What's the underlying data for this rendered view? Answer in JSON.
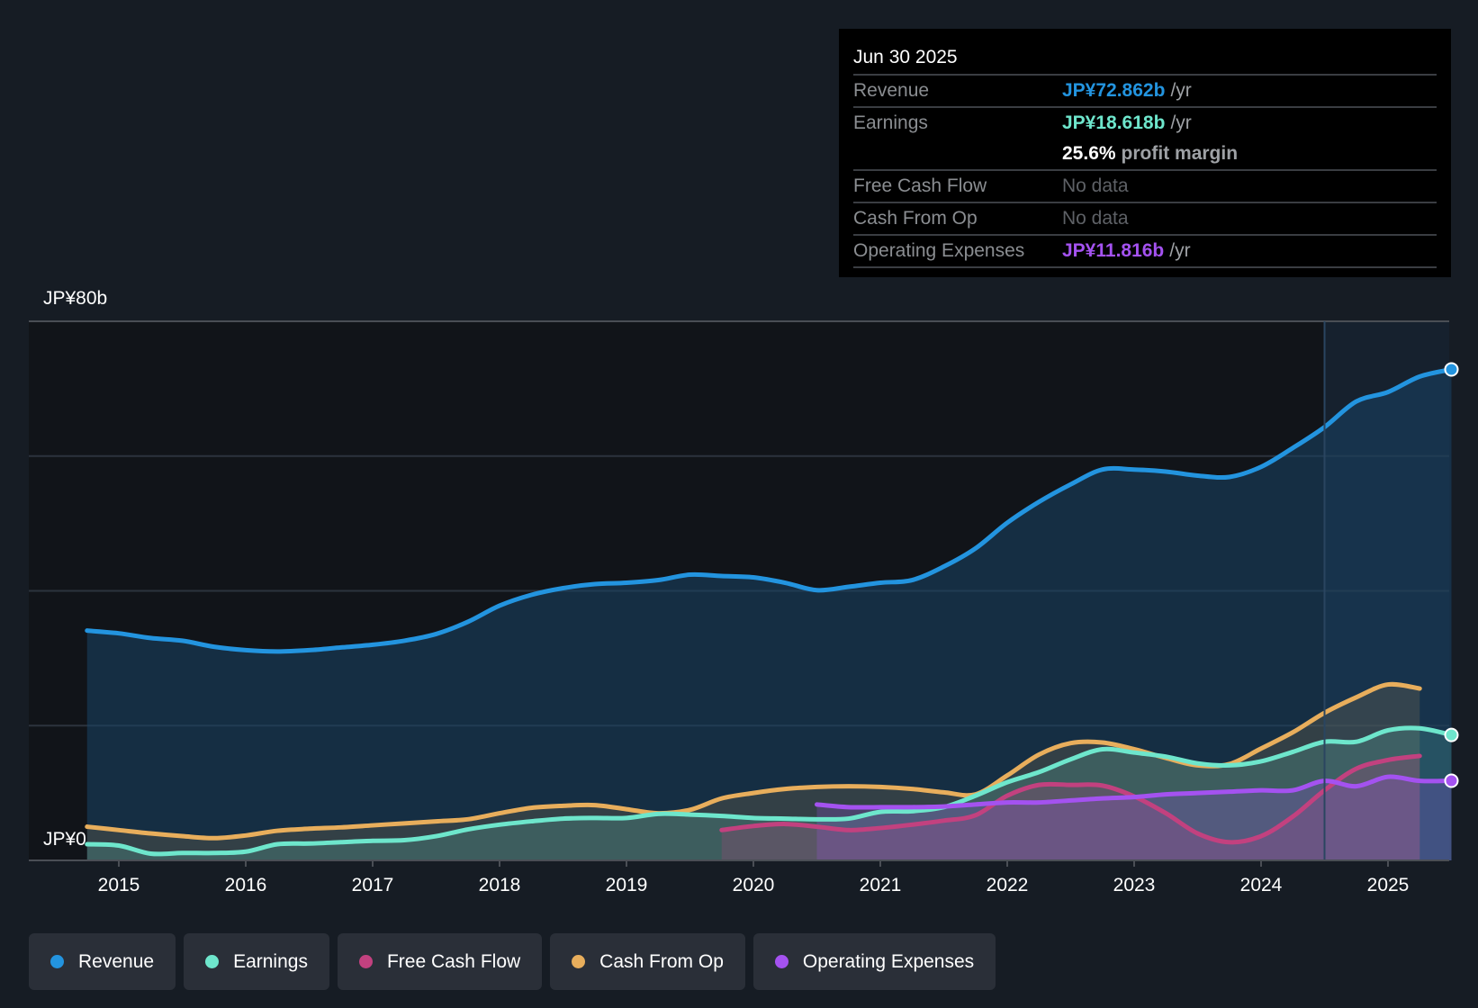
{
  "tooltip": {
    "date": "Jun 30 2025",
    "rows": [
      {
        "label": "Revenue",
        "value": "JP¥72.862b",
        "unit": "/yr",
        "color": "#2394df"
      },
      {
        "label": "Earnings",
        "value": "JP¥18.618b",
        "unit": "/yr",
        "color": "#6ee6cc"
      },
      {
        "label": "",
        "value": "25.6%",
        "unit": "profit margin",
        "color": "#ffffff"
      },
      {
        "label": "Free Cash Flow",
        "value": "No data",
        "unit": "",
        "color": "#5e6166"
      },
      {
        "label": "Cash From Op",
        "value": "No data",
        "unit": "",
        "color": "#5e6166"
      },
      {
        "label": "Operating Expenses",
        "value": "JP¥11.816b",
        "unit": "/yr",
        "color": "#a452f0"
      }
    ]
  },
  "legend": [
    {
      "label": "Revenue",
      "color": "#2394df"
    },
    {
      "label": "Earnings",
      "color": "#6ee6cc"
    },
    {
      "label": "Free Cash Flow",
      "color": "#c2417f"
    },
    {
      "label": "Cash From Op",
      "color": "#e8ae5c"
    },
    {
      "label": "Operating Expenses",
      "color": "#a452f0"
    }
  ],
  "chart_data": {
    "type": "area",
    "title": "",
    "xlabel": "",
    "ylabel": "",
    "ylim": [
      0,
      80
    ],
    "xlim": [
      2014.5,
      2025.5
    ],
    "y_tick_labels": [
      "JP¥0",
      "JP¥80b"
    ],
    "x_tick_labels": [
      "2015",
      "2016",
      "2017",
      "2018",
      "2019",
      "2020",
      "2021",
      "2022",
      "2023",
      "2024",
      "2025"
    ],
    "grid": true,
    "legend_position": "bottom",
    "highlight_start": 2024.5,
    "units": "JP¥ billions",
    "series": [
      {
        "name": "Revenue",
        "color": "#2394df",
        "x": [
          2014.75,
          2015.0,
          2015.25,
          2015.5,
          2015.75,
          2016.0,
          2016.25,
          2016.5,
          2016.75,
          2017.0,
          2017.25,
          2017.5,
          2017.75,
          2018.0,
          2018.25,
          2018.5,
          2018.75,
          2019.0,
          2019.25,
          2019.5,
          2019.75,
          2020.0,
          2020.25,
          2020.5,
          2020.75,
          2021.0,
          2021.25,
          2021.5,
          2021.75,
          2022.0,
          2022.25,
          2022.5,
          2022.75,
          2023.0,
          2023.25,
          2023.5,
          2023.75,
          2024.0,
          2024.25,
          2024.5,
          2024.75,
          2025.0,
          2025.25,
          2025.5
        ],
        "y": [
          34.1,
          33.7,
          33.0,
          32.6,
          31.7,
          31.2,
          31.0,
          31.2,
          31.6,
          32.0,
          32.6,
          33.6,
          35.4,
          37.8,
          39.4,
          40.4,
          41.0,
          41.2,
          41.6,
          42.4,
          42.2,
          42.0,
          41.2,
          40.1,
          40.6,
          41.2,
          41.6,
          43.6,
          46.3,
          50.1,
          53.2,
          55.8,
          58.0,
          58.0,
          57.7,
          57.1,
          56.9,
          58.4,
          61.2,
          64.3,
          68.1,
          69.5,
          71.8,
          72.862
        ]
      },
      {
        "name": "Earnings",
        "color": "#6ee6cc",
        "x": [
          2014.75,
          2015.0,
          2015.25,
          2015.5,
          2015.75,
          2016.0,
          2016.25,
          2016.5,
          2016.75,
          2017.0,
          2017.25,
          2017.5,
          2017.75,
          2018.0,
          2018.25,
          2018.5,
          2018.75,
          2019.0,
          2019.25,
          2019.5,
          2019.75,
          2020.0,
          2020.25,
          2020.5,
          2020.75,
          2021.0,
          2021.25,
          2021.5,
          2021.75,
          2022.0,
          2022.25,
          2022.5,
          2022.75,
          2023.0,
          2023.25,
          2023.5,
          2023.75,
          2024.0,
          2024.25,
          2024.5,
          2024.75,
          2025.0,
          2025.25,
          2025.5
        ],
        "y": [
          2.4,
          2.2,
          1.0,
          1.1,
          1.1,
          1.3,
          2.4,
          2.5,
          2.7,
          2.9,
          3.0,
          3.6,
          4.6,
          5.3,
          5.8,
          6.2,
          6.3,
          6.3,
          6.9,
          6.8,
          6.6,
          6.3,
          6.2,
          6.1,
          6.2,
          7.2,
          7.3,
          7.9,
          9.6,
          11.6,
          13.1,
          15.0,
          16.5,
          16.0,
          15.4,
          14.4,
          14.1,
          14.7,
          16.1,
          17.6,
          17.6,
          19.3,
          19.6,
          18.618
        ]
      },
      {
        "name": "Free Cash Flow",
        "color": "#c2417f",
        "x": [
          2019.75,
          2020.0,
          2020.25,
          2020.5,
          2020.75,
          2021.0,
          2021.25,
          2021.5,
          2021.75,
          2022.0,
          2022.25,
          2022.5,
          2022.75,
          2023.0,
          2023.25,
          2023.5,
          2023.75,
          2024.0,
          2024.25,
          2024.5,
          2024.75,
          2025.0,
          2025.25
        ],
        "y": [
          4.5,
          5.1,
          5.4,
          5.0,
          4.5,
          4.8,
          5.3,
          5.9,
          6.7,
          9.6,
          11.2,
          11.2,
          11.1,
          9.5,
          7.0,
          4.0,
          2.7,
          3.6,
          6.5,
          10.4,
          13.6,
          14.9,
          15.5
        ]
      },
      {
        "name": "Cash From Op",
        "color": "#e8ae5c",
        "x": [
          2014.75,
          2015.0,
          2015.25,
          2015.5,
          2015.75,
          2016.0,
          2016.25,
          2016.5,
          2016.75,
          2017.0,
          2017.25,
          2017.5,
          2017.75,
          2018.0,
          2018.25,
          2018.5,
          2018.75,
          2019.0,
          2019.25,
          2019.5,
          2019.75,
          2020.0,
          2020.25,
          2020.5,
          2020.75,
          2021.0,
          2021.25,
          2021.5,
          2021.75,
          2022.0,
          2022.25,
          2022.5,
          2022.75,
          2023.0,
          2023.25,
          2023.5,
          2023.75,
          2024.0,
          2024.25,
          2024.5,
          2024.75,
          2025.0,
          2025.25
        ],
        "y": [
          5.0,
          4.5,
          4.0,
          3.6,
          3.3,
          3.7,
          4.4,
          4.7,
          4.9,
          5.2,
          5.5,
          5.8,
          6.1,
          7.0,
          7.8,
          8.1,
          8.2,
          7.6,
          7.0,
          7.5,
          9.2,
          10.0,
          10.6,
          10.9,
          11.0,
          10.9,
          10.6,
          10.1,
          9.8,
          12.6,
          15.7,
          17.4,
          17.5,
          16.5,
          15.2,
          14.1,
          14.3,
          16.6,
          19.0,
          21.9,
          24.2,
          26.1,
          25.5
        ]
      },
      {
        "name": "Operating Expenses",
        "color": "#a452f0",
        "x": [
          2020.5,
          2020.75,
          2021.0,
          2021.25,
          2021.5,
          2021.75,
          2022.0,
          2022.25,
          2022.5,
          2022.75,
          2023.0,
          2023.25,
          2023.5,
          2023.75,
          2024.0,
          2024.25,
          2024.5,
          2024.75,
          2025.0,
          2025.25,
          2025.5
        ],
        "y": [
          8.3,
          7.9,
          7.9,
          7.9,
          8.0,
          8.3,
          8.6,
          8.6,
          8.9,
          9.2,
          9.4,
          9.8,
          10.0,
          10.2,
          10.4,
          10.4,
          11.8,
          11.0,
          12.4,
          11.8,
          11.816
        ]
      }
    ]
  }
}
